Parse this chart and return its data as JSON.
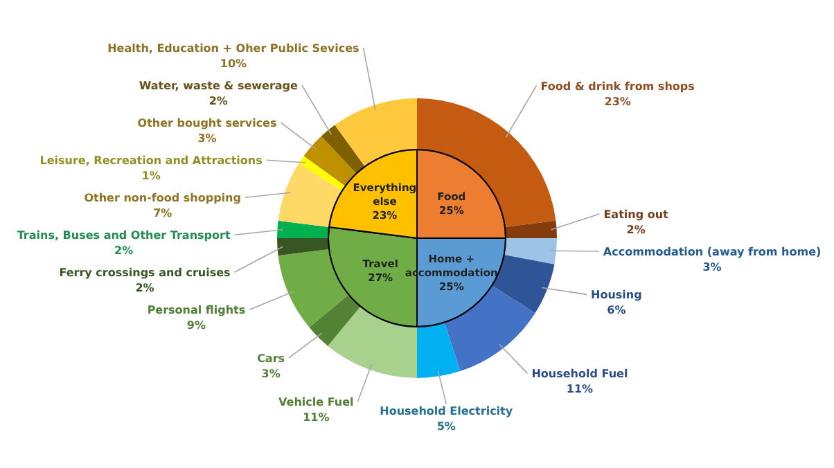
{
  "chart_data": [
    {
      "type": "pie",
      "categories": [
        "Food",
        "Home + accommodation",
        "Travel",
        "Everything else"
      ],
      "values": [
        25,
        25,
        27,
        23
      ],
      "value_labels": [
        "25%",
        "25%",
        "27%",
        "23%"
      ],
      "colors": [
        "#ed7d31",
        "#5b9bd5",
        "#70ad47",
        "#ffc000"
      ]
    },
    {
      "type": "donut",
      "categories": [
        "Food & drink from shops",
        "Eating out",
        "Accommodation (away from home)",
        "Housing",
        "Household Fuel",
        "Household Electricity",
        "Vehicle Fuel",
        "Cars",
        "Personal flights",
        "Ferry crossings and cruises",
        "Trains, Buses and Other Transport",
        "Other non-food shopping",
        "Leisure, Recreation and Attractions",
        "Other bought services",
        "Water, waste & sewerage",
        "Health, Education + Oher Public Sevices"
      ],
      "values": [
        23,
        2,
        3,
        6,
        11,
        5,
        11,
        3,
        9,
        2,
        2,
        7,
        1,
        3,
        2,
        10
      ],
      "value_labels": [
        "23%",
        "2%",
        "3%",
        "6%",
        "11%",
        "5%",
        "11%",
        "3%",
        "9%",
        "2%",
        "2%",
        "7%",
        "1%",
        "3%",
        "2%",
        "10%"
      ],
      "colors": [
        "#c55a11",
        "#843c0c",
        "#9dc3e6",
        "#2f5597",
        "#4472c4",
        "#00b0f0",
        "#a9d18e",
        "#548235",
        "#70ad47",
        "#375623",
        "#00b050",
        "#ffd966",
        "#ffff00",
        "#bf9000",
        "#7f6000",
        "#ffc83d"
      ]
    }
  ]
}
